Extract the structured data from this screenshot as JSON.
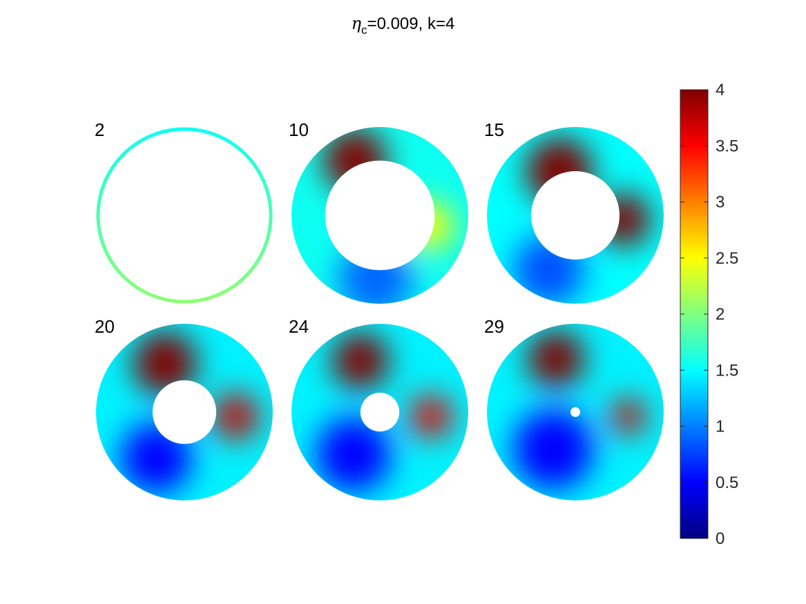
{
  "title": {
    "symbol": "η",
    "subscript": "c",
    "rest": "=0.009, k=4"
  },
  "chart_data": {
    "type": "heatmap",
    "title": "ηc=0.009, k=4",
    "colormap": "jet",
    "colorbar": {
      "range": [
        0,
        4
      ],
      "ticks": [
        0,
        0.5,
        1,
        1.5,
        2,
        2.5,
        3,
        3.5,
        4
      ],
      "tick_labels": [
        "0",
        "0.5",
        "1",
        "1.5",
        "2",
        "2.5",
        "3",
        "3.5",
        "4"
      ],
      "placement": "right"
    },
    "grid": false,
    "panels": [
      {
        "label": "2",
        "hole_fraction": 0.96,
        "ring_only": true,
        "background": 1.6,
        "blobs": []
      },
      {
        "label": "10",
        "hole_fraction": 0.62,
        "background": 1.55,
        "blobs": [
          {
            "dx": -0.28,
            "dy": -0.62,
            "r": 0.36,
            "value": 4.0
          },
          {
            "dx": 0.55,
            "dy": 0.12,
            "r": 0.28,
            "value": 2.5
          },
          {
            "dx": -0.05,
            "dy": 0.72,
            "r": 0.42,
            "value": 0.9
          }
        ]
      },
      {
        "label": "15",
        "hole_fraction": 0.5,
        "background": 1.5,
        "blobs": [
          {
            "dx": -0.18,
            "dy": -0.5,
            "r": 0.38,
            "value": 4.0
          },
          {
            "dx": 0.55,
            "dy": 0.05,
            "r": 0.3,
            "value": 4.0
          },
          {
            "dx": -0.3,
            "dy": 0.62,
            "r": 0.4,
            "value": 0.8
          }
        ]
      },
      {
        "label": "20",
        "hole_fraction": 0.36,
        "background": 1.45,
        "blobs": [
          {
            "dx": -0.22,
            "dy": -0.55,
            "r": 0.36,
            "value": 4.0
          },
          {
            "dx": 0.58,
            "dy": 0.05,
            "r": 0.26,
            "value": 3.7
          },
          {
            "dx": -0.32,
            "dy": 0.52,
            "r": 0.4,
            "value": 0.5
          }
        ]
      },
      {
        "label": "24",
        "hole_fraction": 0.22,
        "background": 1.45,
        "blobs": [
          {
            "dx": -0.22,
            "dy": -0.58,
            "r": 0.32,
            "value": 4.0
          },
          {
            "dx": 0.58,
            "dy": 0.05,
            "r": 0.24,
            "value": 3.6
          },
          {
            "dx": -0.3,
            "dy": 0.48,
            "r": 0.42,
            "value": 0.5
          }
        ]
      },
      {
        "label": "29",
        "hole_fraction": 0.055,
        "background": 1.45,
        "blobs": [
          {
            "dx": -0.22,
            "dy": -0.6,
            "r": 0.32,
            "value": 4.0
          },
          {
            "dx": 0.6,
            "dy": 0.05,
            "r": 0.2,
            "value": 3.7
          },
          {
            "dx": -0.25,
            "dy": 0.42,
            "r": 0.45,
            "value": 0.5
          }
        ]
      }
    ]
  }
}
